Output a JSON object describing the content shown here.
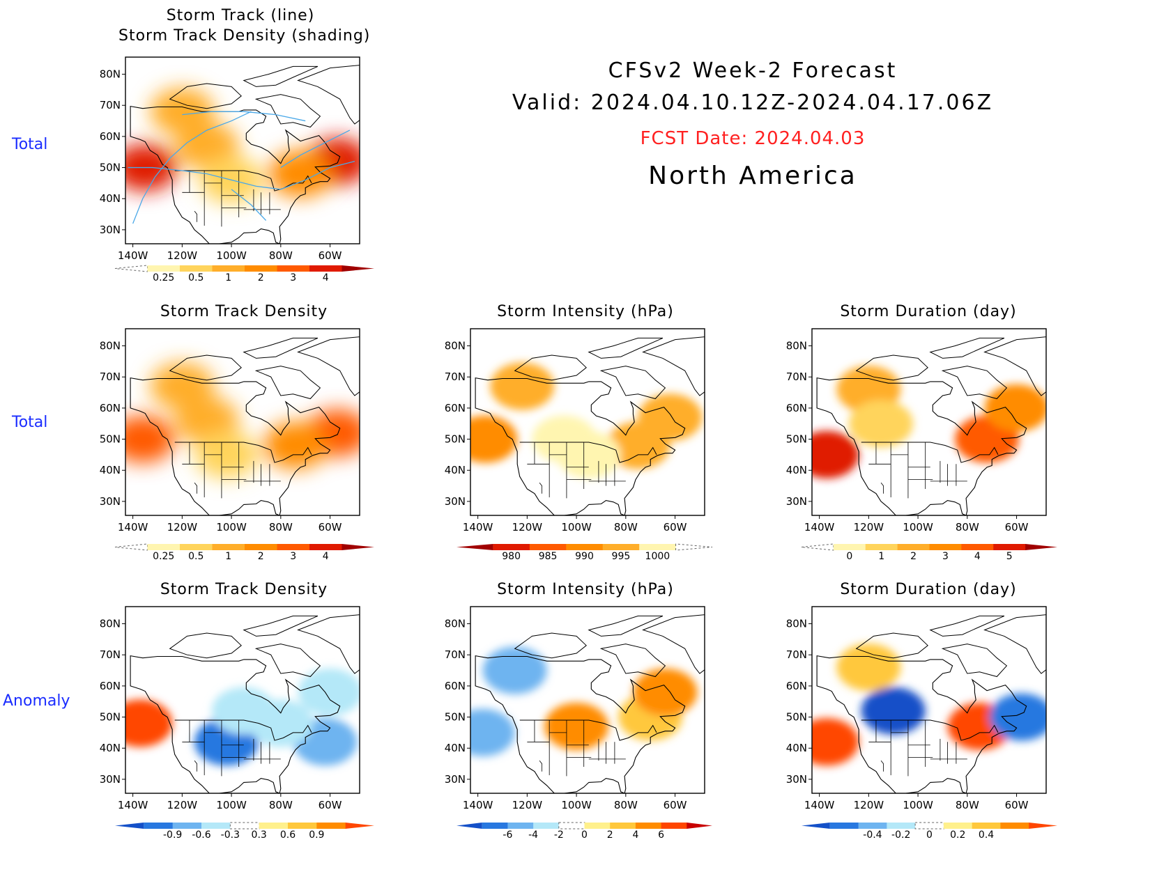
{
  "header": {
    "title_line1": "CFSv2 Week-2 Forecast",
    "title_line2": "Valid: 2024.04.10.12Z-2024.04.17.06Z",
    "fcst_date": "FCST Date: 2024.04.03",
    "region": "North America",
    "fcst_color": "#ff2020"
  },
  "row_labels": [
    "Total",
    "Total",
    "Anomaly"
  ],
  "chart_data": [
    {
      "id": "p0",
      "type": "heatmap",
      "title_lines": [
        "Storm Track (line)",
        "Storm Track Density (shading)"
      ],
      "lon_ticks": [
        "140W",
        "120W",
        "100W",
        "80W",
        "60W"
      ],
      "lat_ticks": [
        "80N",
        "70N",
        "60N",
        "50N",
        "40N",
        "30N"
      ],
      "colorbar": {
        "labels": [
          "0.25",
          "0.5",
          "1",
          "2",
          "3",
          "4"
        ],
        "colors": [
          "#ffffff",
          "#fff5b0",
          "#ffd45c",
          "#ffae2a",
          "#ff8c00",
          "#ff5a00",
          "#e01a00",
          "#a00000"
        ]
      },
      "blobs": [
        {
          "lon": -135,
          "lat": 50,
          "level": 6
        },
        {
          "lon": -57,
          "lat": 52,
          "level": 6
        },
        {
          "lon": -120,
          "lat": 68,
          "level": 3
        },
        {
          "lon": -110,
          "lat": 57,
          "level": 3
        },
        {
          "lon": -72,
          "lat": 48,
          "level": 4
        },
        {
          "lon": -100,
          "lat": 46,
          "level": 2
        }
      ]
    },
    {
      "id": "p1",
      "type": "heatmap",
      "title_lines": [
        "Storm Track Density"
      ],
      "lon_ticks": [
        "140W",
        "120W",
        "100W",
        "80W",
        "60W"
      ],
      "lat_ticks": [
        "80N",
        "70N",
        "60N",
        "50N",
        "40N",
        "30N"
      ],
      "colorbar": {
        "labels": [
          "0.25",
          "0.5",
          "1",
          "2",
          "3",
          "4"
        ],
        "colors": [
          "#ffffff",
          "#fff5b0",
          "#ffd45c",
          "#ffae2a",
          "#ff8c00",
          "#ff5a00",
          "#e01a00",
          "#a00000"
        ]
      },
      "blobs": [
        {
          "lon": -136,
          "lat": 50,
          "level": 5
        },
        {
          "lon": -57,
          "lat": 52,
          "level": 5
        },
        {
          "lon": -120,
          "lat": 67,
          "level": 3
        },
        {
          "lon": -110,
          "lat": 56,
          "level": 3
        },
        {
          "lon": -74,
          "lat": 48,
          "level": 4
        },
        {
          "lon": -102,
          "lat": 45,
          "level": 2
        }
      ]
    },
    {
      "id": "p2",
      "type": "heatmap",
      "title_lines": [
        "Storm Intensity (hPa)"
      ],
      "lon_ticks": [
        "140W",
        "120W",
        "100W",
        "80W",
        "60W"
      ],
      "lat_ticks": [
        "80N",
        "70N",
        "60N",
        "50N",
        "40N",
        "30N"
      ],
      "colorbar": {
        "labels": [
          "980",
          "985",
          "990",
          "995",
          "1000"
        ],
        "colors": [
          "#a00000",
          "#e01a00",
          "#ff5a00",
          "#ff8c00",
          "#ffae2a",
          "#fff5b0",
          "#ffffff"
        ]
      },
      "blobs": [
        {
          "lon": -122,
          "lat": 67,
          "level": 4
        },
        {
          "lon": -137,
          "lat": 50,
          "level": 3
        },
        {
          "lon": -62,
          "lat": 57,
          "level": 4
        },
        {
          "lon": -75,
          "lat": 48,
          "level": 4
        },
        {
          "lon": -105,
          "lat": 50,
          "level": 5
        },
        {
          "lon": -95,
          "lat": 45,
          "level": 5
        }
      ]
    },
    {
      "id": "p3",
      "type": "heatmap",
      "title_lines": [
        "Storm Duration (day)"
      ],
      "lon_ticks": [
        "140W",
        "120W",
        "100W",
        "80W",
        "60W"
      ],
      "lat_ticks": [
        "80N",
        "70N",
        "60N",
        "50N",
        "40N",
        "30N"
      ],
      "colorbar": {
        "labels": [
          "0",
          "1",
          "2",
          "3",
          "4",
          "5"
        ],
        "colors": [
          "#ffffff",
          "#fff5b0",
          "#ffd45c",
          "#ffae2a",
          "#ff8c00",
          "#ff5a00",
          "#e01a00",
          "#a00000"
        ]
      },
      "blobs": [
        {
          "lon": -137,
          "lat": 45,
          "level": 6
        },
        {
          "lon": -72,
          "lat": 50,
          "level": 5
        },
        {
          "lon": -120,
          "lat": 66,
          "level": 3
        },
        {
          "lon": -115,
          "lat": 55,
          "level": 2
        },
        {
          "lon": -60,
          "lat": 60,
          "level": 4
        }
      ]
    },
    {
      "id": "p4",
      "type": "heatmap",
      "title_lines": [
        "Storm Track Density"
      ],
      "lon_ticks": [
        "140W",
        "120W",
        "100W",
        "80W",
        "60W"
      ],
      "lat_ticks": [
        "80N",
        "70N",
        "60N",
        "50N",
        "40N",
        "30N"
      ],
      "colorbar": {
        "labels": [
          "-0.9",
          "-0.6",
          "-0.3",
          "0.3",
          "0.6",
          "0.9"
        ],
        "colors": [
          "#1450c8",
          "#2878e0",
          "#6eb4f0",
          "#b4e8f8",
          "#ffffff",
          "#fff08c",
          "#ffc83c",
          "#ff8c00",
          "#ff4600"
        ]
      },
      "blobs": [
        {
          "lon": -102,
          "lat": 42,
          "level": 1
        },
        {
          "lon": -95,
          "lat": 52,
          "level": 3
        },
        {
          "lon": -62,
          "lat": 42,
          "level": 2
        },
        {
          "lon": -60,
          "lat": 58,
          "level": 3
        },
        {
          "lon": -137,
          "lat": 48,
          "level": 8
        },
        {
          "lon": -80,
          "lat": 48,
          "level": 3
        }
      ]
    },
    {
      "id": "p5",
      "type": "heatmap",
      "title_lines": [
        "Storm Intensity (hPa)"
      ],
      "lon_ticks": [
        "140W",
        "120W",
        "100W",
        "80W",
        "60W"
      ],
      "lat_ticks": [
        "80N",
        "70N",
        "60N",
        "50N",
        "40N",
        "30N"
      ],
      "colorbar": {
        "labels": [
          "-6",
          "-4",
          "-2",
          "0",
          "2",
          "4",
          "6"
        ],
        "colors": [
          "#1450c8",
          "#2878e0",
          "#6eb4f0",
          "#b4e8f8",
          "#ffffff",
          "#fff08c",
          "#ffc83c",
          "#ff8c00",
          "#ff4600",
          "#c80000"
        ]
      },
      "blobs": [
        {
          "lon": -125,
          "lat": 65,
          "level": 2
        },
        {
          "lon": -138,
          "lat": 45,
          "level": 2
        },
        {
          "lon": -70,
          "lat": 50,
          "level": 6
        },
        {
          "lon": -100,
          "lat": 47,
          "level": 7
        },
        {
          "lon": -64,
          "lat": 58,
          "level": 7
        }
      ]
    },
    {
      "id": "p6",
      "type": "heatmap",
      "title_lines": [
        "Storm Duration (day)"
      ],
      "lon_ticks": [
        "140W",
        "120W",
        "100W",
        "80W",
        "60W"
      ],
      "lat_ticks": [
        "80N",
        "70N",
        "60N",
        "50N",
        "40N",
        "30N"
      ],
      "colorbar": {
        "labels": [
          "-0.4",
          "-0.2",
          "0",
          "0.2",
          "0.4"
        ],
        "colors": [
          "#1450c8",
          "#2878e0",
          "#6eb4f0",
          "#b4e8f8",
          "#ffffff",
          "#fff08c",
          "#ffc83c",
          "#ff8c00",
          "#ff4600"
        ]
      },
      "blobs": [
        {
          "lon": -110,
          "lat": 52,
          "level": 0
        },
        {
          "lon": -137,
          "lat": 42,
          "level": 8
        },
        {
          "lon": -75,
          "lat": 47,
          "level": 8
        },
        {
          "lon": -58,
          "lat": 50,
          "level": 1
        },
        {
          "lon": -120,
          "lat": 66,
          "level": 6
        }
      ]
    }
  ]
}
